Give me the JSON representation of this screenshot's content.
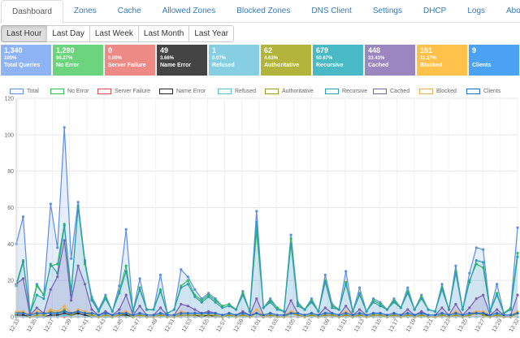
{
  "tabs": [
    {
      "label": "Dashboard",
      "active": true
    },
    {
      "label": "Zones"
    },
    {
      "label": "Cache"
    },
    {
      "label": "Allowed Zones"
    },
    {
      "label": "Blocked Zones"
    },
    {
      "label": "DNS Client"
    },
    {
      "label": "Settings"
    },
    {
      "label": "DHCP"
    },
    {
      "label": "Logs"
    },
    {
      "label": "About"
    }
  ],
  "time_ranges": [
    {
      "label": "Last Hour",
      "active": true
    },
    {
      "label": "Last Day"
    },
    {
      "label": "Last Week"
    },
    {
      "label": "Last Month"
    },
    {
      "label": "Last Year"
    }
  ],
  "stats": [
    {
      "value": "1,340",
      "percent": "100%",
      "label": "Total Queries",
      "color": "#8eb4f5"
    },
    {
      "value": "1,290",
      "percent": "96.27%",
      "label": "No Error",
      "color": "#6dd47e"
    },
    {
      "value": "0",
      "percent": "0.00%",
      "label": "Server Failure",
      "color": "#ee8a86"
    },
    {
      "value": "49",
      "percent": "3.66%",
      "label": "Name Error",
      "color": "#444444"
    },
    {
      "value": "1",
      "percent": "0.07%",
      "label": "Refused",
      "color": "#86cfe2"
    },
    {
      "value": "62",
      "percent": "4.63%",
      "label": "Authoritative",
      "color": "#b3b43b"
    },
    {
      "value": "679",
      "percent": "50.67%",
      "label": "Recursive",
      "color": "#49b9c6"
    },
    {
      "value": "448",
      "percent": "33.43%",
      "label": "Cached",
      "color": "#9b86c0"
    },
    {
      "value": "151",
      "percent": "11.27%",
      "label": "Blocked",
      "color": "#ffc14a"
    },
    {
      "value": "9",
      "percent": "",
      "label": "Clients",
      "color": "#4ba2f3"
    }
  ],
  "chart_data": {
    "type": "line",
    "y_ticks": [
      "0",
      "20",
      "40",
      "60",
      "80",
      "100",
      "120"
    ],
    "ylim": [
      0,
      120
    ],
    "x_labels": [
      "12:33",
      "12:35",
      "12:37",
      "12:39",
      "12:41",
      "12:43",
      "12:45",
      "12:47",
      "12:49",
      "12:51",
      "12:53",
      "12:55",
      "12:57",
      "12:59",
      "13:01",
      "13:03",
      "13:05",
      "13:07",
      "13:09",
      "13:11",
      "13:13",
      "13:15",
      "13:17",
      "13:19",
      "13:21",
      "13:23",
      "13:25",
      "13:27",
      "13:29",
      "13:32"
    ],
    "legend_position": "top",
    "series": [
      {
        "name": "Total",
        "color": "#5b8ee6",
        "fill": "rgba(91,142,230,0.15)",
        "values": [
          40,
          55,
          2,
          18,
          12,
          62,
          38,
          104,
          32,
          63,
          30,
          11,
          4,
          12,
          3,
          17,
          48,
          3,
          21,
          4,
          4,
          23,
          2,
          4,
          26,
          22,
          15,
          10,
          13,
          10,
          6,
          7,
          4,
          14,
          3,
          58,
          5,
          10,
          5,
          3,
          45,
          8,
          4,
          10,
          3,
          23,
          7,
          4,
          25,
          3,
          16,
          3,
          10,
          8,
          4,
          10,
          5,
          16,
          4,
          12,
          4,
          3,
          18,
          4,
          28,
          4,
          24,
          38,
          37,
          3,
          18,
          2,
          5,
          49
        ]
      },
      {
        "name": "No Error",
        "color": "#2ebd59",
        "fill": "",
        "values": [
          18,
          31,
          2,
          17,
          12,
          28,
          29,
          51,
          14,
          60,
          29,
          10,
          3,
          11,
          3,
          14,
          28,
          3,
          16,
          4,
          4,
          15,
          2,
          4,
          17,
          20,
          12,
          9,
          12,
          9,
          6,
          7,
          4,
          13,
          3,
          47,
          5,
          9,
          5,
          3,
          43,
          7,
          4,
          9,
          3,
          20,
          6,
          4,
          19,
          3,
          13,
          3,
          9,
          7,
          4,
          9,
          5,
          14,
          4,
          11,
          4,
          3,
          16,
          4,
          25,
          4,
          20,
          29,
          27,
          3,
          13,
          2,
          5,
          35
        ]
      },
      {
        "name": "Server Failure",
        "color": "#e0504a",
        "fill": "",
        "values": [
          0,
          0,
          0,
          0,
          0,
          0,
          0,
          0,
          0,
          0,
          0,
          0,
          0,
          0,
          0,
          0,
          0,
          0,
          0,
          0,
          0,
          0,
          0,
          0,
          0,
          0,
          0,
          0,
          0,
          0,
          0,
          0,
          0,
          0,
          0,
          0,
          0,
          0,
          0,
          0,
          0,
          0,
          0,
          0,
          0,
          0,
          0,
          0,
          0,
          0,
          0,
          0,
          0,
          0,
          0,
          0,
          0,
          0,
          0,
          0,
          0,
          0,
          0,
          0,
          0,
          0,
          0,
          0,
          0,
          0,
          0,
          0,
          0,
          0
        ]
      },
      {
        "name": "Name Error",
        "color": "#222222",
        "fill": "",
        "values": [
          1,
          1,
          0,
          0,
          0,
          1,
          1,
          2,
          1,
          2,
          1,
          0,
          0,
          0,
          0,
          1,
          1,
          0,
          1,
          0,
          0,
          1,
          0,
          0,
          1,
          1,
          1,
          0,
          1,
          0,
          0,
          1,
          0,
          1,
          0,
          2,
          0,
          1,
          0,
          0,
          2,
          1,
          0,
          1,
          0,
          1,
          1,
          0,
          1,
          0,
          1,
          0,
          1,
          1,
          0,
          1,
          0,
          1,
          0,
          1,
          0,
          0,
          1,
          0,
          1,
          0,
          1,
          2,
          2,
          0,
          1,
          0,
          0,
          2
        ]
      },
      {
        "name": "Refused",
        "color": "#5bc0de",
        "fill": "",
        "values": [
          0,
          0,
          0,
          0,
          0,
          0,
          0,
          1,
          0,
          0,
          0,
          0,
          0,
          0,
          0,
          0,
          0,
          0,
          0,
          0,
          0,
          0,
          0,
          0,
          0,
          0,
          0,
          0,
          0,
          0,
          0,
          0,
          0,
          0,
          0,
          0,
          0,
          0,
          0,
          0,
          0,
          0,
          0,
          0,
          0,
          0,
          0,
          0,
          0,
          0,
          0,
          0,
          0,
          0,
          0,
          0,
          0,
          0,
          0,
          0,
          0,
          0,
          0,
          0,
          0,
          0,
          0,
          0,
          0,
          0,
          0,
          0,
          0,
          0
        ]
      },
      {
        "name": "Authoritative",
        "color": "#9b9b1c",
        "fill": "",
        "values": [
          2,
          3,
          0,
          1,
          1,
          3,
          2,
          4,
          1,
          3,
          2,
          1,
          0,
          1,
          0,
          1,
          2,
          0,
          1,
          0,
          0,
          1,
          0,
          0,
          1,
          1,
          1,
          1,
          1,
          1,
          0,
          1,
          0,
          1,
          0,
          2,
          0,
          1,
          0,
          0,
          2,
          1,
          0,
          1,
          0,
          1,
          1,
          0,
          1,
          0,
          1,
          0,
          1,
          1,
          0,
          1,
          0,
          1,
          0,
          1,
          0,
          0,
          1,
          0,
          1,
          0,
          1,
          2,
          1,
          0,
          1,
          0,
          0,
          2
        ]
      },
      {
        "name": "Recursive",
        "color": "#2aa0b0",
        "fill": "rgba(42,160,176,0.12)",
        "values": [
          17,
          30,
          2,
          12,
          10,
          29,
          24,
          50,
          12,
          61,
          31,
          9,
          3,
          10,
          3,
          13,
          25,
          3,
          15,
          4,
          4,
          14,
          2,
          4,
          16,
          18,
          11,
          8,
          11,
          8,
          5,
          6,
          4,
          12,
          3,
          52,
          5,
          8,
          4,
          3,
          40,
          6,
          4,
          8,
          3,
          19,
          5,
          4,
          18,
          3,
          12,
          3,
          8,
          6,
          4,
          8,
          5,
          13,
          4,
          10,
          4,
          3,
          15,
          4,
          24,
          4,
          19,
          31,
          30,
          3,
          12,
          2,
          4,
          33
        ]
      },
      {
        "name": "Cached",
        "color": "#7a5fb5",
        "fill": "rgba(122,95,181,0.15)",
        "values": [
          18,
          21,
          1,
          5,
          2,
          15,
          22,
          42,
          9,
          28,
          18,
          4,
          1,
          3,
          1,
          4,
          12,
          1,
          6,
          1,
          1,
          5,
          1,
          1,
          7,
          6,
          4,
          2,
          3,
          2,
          1,
          2,
          1,
          3,
          1,
          10,
          1,
          2,
          1,
          1,
          9,
          2,
          1,
          2,
          1,
          5,
          2,
          1,
          6,
          1,
          4,
          1,
          2,
          2,
          1,
          2,
          1,
          4,
          1,
          3,
          1,
          1,
          5,
          1,
          7,
          1,
          5,
          10,
          12,
          1,
          4,
          1,
          1,
          12
        ]
      },
      {
        "name": "Blocked",
        "color": "#f0ad4e",
        "fill": "",
        "values": [
          3,
          3,
          1,
          3,
          2,
          4,
          3,
          6,
          2,
          4,
          3,
          2,
          1,
          2,
          1,
          2,
          3,
          1,
          2,
          1,
          1,
          2,
          1,
          1,
          3,
          2,
          2,
          2,
          2,
          2,
          1,
          2,
          1,
          2,
          1,
          4,
          1,
          2,
          1,
          1,
          3,
          2,
          1,
          2,
          1,
          2,
          2,
          1,
          3,
          1,
          2,
          1,
          2,
          2,
          1,
          2,
          1,
          2,
          1,
          2,
          1,
          1,
          2,
          1,
          3,
          1,
          2,
          3,
          3,
          1,
          2,
          1,
          1,
          3
        ]
      },
      {
        "name": "Clients",
        "color": "#1f6fd1",
        "fill": "",
        "values": [
          2,
          2,
          1,
          2,
          2,
          2,
          2,
          3,
          2,
          3,
          2,
          2,
          1,
          2,
          1,
          2,
          2,
          1,
          2,
          1,
          1,
          2,
          1,
          1,
          2,
          2,
          2,
          2,
          2,
          2,
          1,
          2,
          1,
          2,
          1,
          2,
          1,
          2,
          1,
          1,
          2,
          2,
          1,
          2,
          1,
          2,
          2,
          1,
          2,
          1,
          2,
          1,
          2,
          2,
          1,
          2,
          1,
          2,
          1,
          2,
          1,
          1,
          2,
          1,
          2,
          1,
          2,
          2,
          2,
          1,
          2,
          1,
          1,
          2
        ]
      }
    ]
  }
}
